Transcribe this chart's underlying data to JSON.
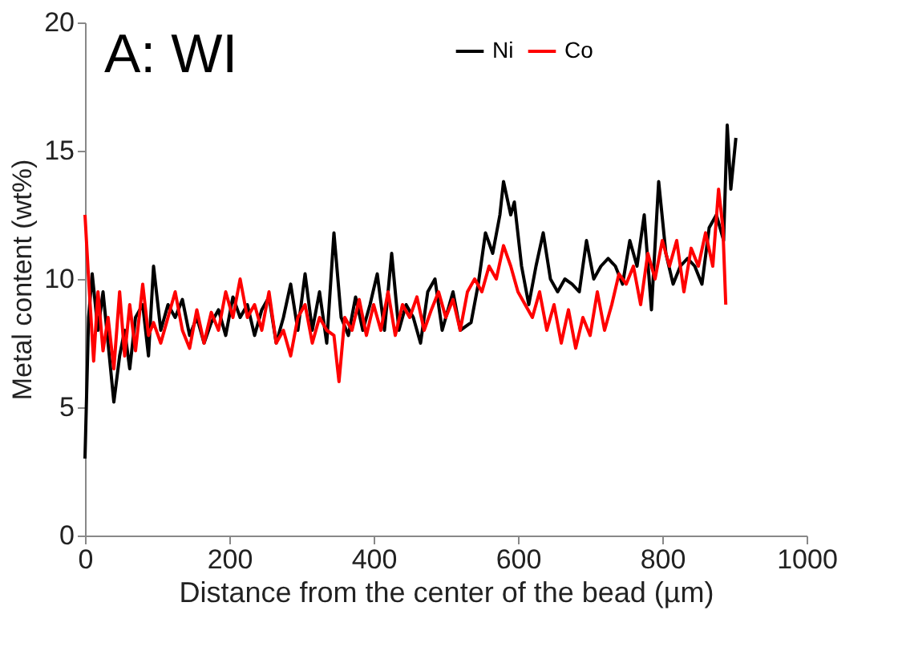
{
  "chart_data": {
    "type": "line",
    "title": "A: WI",
    "xlabel": "Distance from the center of the bead (µm)",
    "ylabel": "Metal content (wt%)",
    "xlim": [
      0,
      1000
    ],
    "xticks": [
      0,
      200,
      400,
      600,
      800,
      1000
    ],
    "ylim": [
      0,
      20
    ],
    "yticks": [
      0,
      5,
      10,
      15,
      20
    ],
    "grid": false,
    "legend": "top",
    "marker": "none",
    "line_style": "solid",
    "series": [
      {
        "name": "Ni",
        "color": "#000000",
        "x": [
          0,
          5,
          10,
          18,
          25,
          32,
          40,
          48,
          55,
          62,
          70,
          80,
          88,
          95,
          105,
          115,
          125,
          135,
          145,
          155,
          165,
          175,
          185,
          195,
          205,
          215,
          225,
          235,
          245,
          255,
          265,
          275,
          285,
          295,
          305,
          315,
          325,
          335,
          345,
          355,
          365,
          375,
          385,
          395,
          405,
          415,
          425,
          435,
          445,
          455,
          465,
          475,
          485,
          495,
          510,
          520,
          535,
          545,
          555,
          565,
          575,
          580,
          590,
          595,
          605,
          615,
          625,
          635,
          645,
          655,
          665,
          675,
          685,
          695,
          705,
          715,
          725,
          735,
          745,
          755,
          765,
          775,
          785,
          795,
          805,
          815,
          825,
          835,
          845,
          855,
          865,
          875,
          885,
          890,
          895,
          902
        ],
        "values": [
          3.0,
          8.5,
          10.2,
          8.0,
          9.5,
          7.5,
          5.2,
          7.0,
          8.0,
          6.5,
          8.5,
          9.0,
          7.0,
          10.5,
          8.0,
          9.0,
          8.5,
          9.2,
          7.8,
          8.5,
          7.5,
          8.3,
          8.8,
          7.8,
          9.3,
          8.5,
          9.0,
          7.8,
          8.8,
          9.3,
          7.5,
          8.5,
          9.8,
          8.0,
          10.2,
          8.0,
          9.5,
          7.5,
          11.8,
          8.5,
          7.8,
          9.3,
          8.0,
          9.0,
          10.2,
          8.0,
          11.0,
          8.0,
          9.0,
          8.5,
          7.5,
          9.5,
          10.0,
          8.0,
          9.5,
          8.0,
          8.3,
          9.8,
          11.8,
          11.0,
          12.5,
          13.8,
          12.5,
          13.0,
          10.5,
          9.0,
          10.5,
          11.8,
          10.0,
          9.5,
          10.0,
          9.8,
          9.5,
          11.5,
          10.0,
          10.5,
          10.8,
          10.5,
          9.8,
          11.5,
          10.5,
          12.5,
          8.8,
          13.8,
          11.0,
          9.8,
          10.5,
          10.8,
          10.5,
          9.8,
          12.0,
          12.5,
          11.5,
          16.0,
          13.5,
          15.5
        ]
      },
      {
        "name": "Co",
        "color": "#ff0000",
        "x": [
          0,
          5,
          12,
          18,
          25,
          32,
          40,
          48,
          55,
          62,
          70,
          80,
          88,
          95,
          105,
          115,
          125,
          135,
          145,
          155,
          165,
          175,
          185,
          195,
          205,
          215,
          225,
          235,
          245,
          255,
          265,
          275,
          285,
          295,
          305,
          315,
          325,
          335,
          345,
          352,
          360,
          370,
          380,
          390,
          400,
          410,
          420,
          430,
          440,
          450,
          460,
          470,
          480,
          490,
          500,
          510,
          520,
          530,
          540,
          550,
          560,
          570,
          580,
          590,
          600,
          610,
          620,
          630,
          640,
          650,
          660,
          670,
          680,
          690,
          700,
          710,
          720,
          730,
          740,
          750,
          760,
          770,
          780,
          790,
          800,
          810,
          820,
          830,
          840,
          850,
          860,
          870,
          878,
          884,
          888
        ],
        "values": [
          12.5,
          10.0,
          6.8,
          9.5,
          7.2,
          8.5,
          6.5,
          9.5,
          7.0,
          9.0,
          7.2,
          9.8,
          7.8,
          8.3,
          7.5,
          8.5,
          9.5,
          8.0,
          7.3,
          8.8,
          7.5,
          8.7,
          8.0,
          9.5,
          8.5,
          10.0,
          8.5,
          9.0,
          8.0,
          9.5,
          7.5,
          8.0,
          7.0,
          8.5,
          9.0,
          7.5,
          8.5,
          8.0,
          7.8,
          6.0,
          8.5,
          8.0,
          9.2,
          7.8,
          9.0,
          8.0,
          9.5,
          7.8,
          9.0,
          8.5,
          9.3,
          8.0,
          8.8,
          9.5,
          8.5,
          9.2,
          8.0,
          9.5,
          10.0,
          9.5,
          10.5,
          10.0,
          11.3,
          10.5,
          9.5,
          9.0,
          8.5,
          9.5,
          8.0,
          9.0,
          7.5,
          8.8,
          7.3,
          8.5,
          7.8,
          9.5,
          8.0,
          9.0,
          10.2,
          9.8,
          10.5,
          9.0,
          11.0,
          10.0,
          11.5,
          10.5,
          11.5,
          9.5,
          11.2,
          10.5,
          11.8,
          10.5,
          13.5,
          12.0,
          9.0
        ]
      }
    ]
  }
}
